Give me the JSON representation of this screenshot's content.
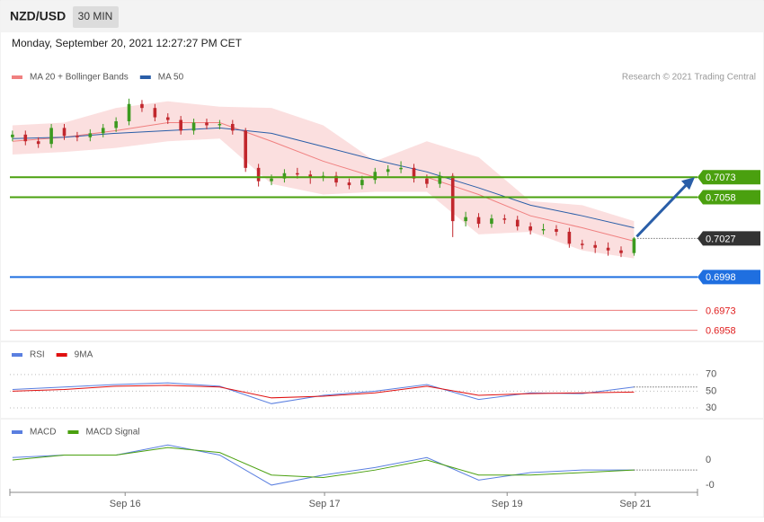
{
  "header": {
    "symbol": "NZD/USD",
    "interval": "30 MIN",
    "timestamp": "Monday, September 20, 2021 12:27:27 PM CET"
  },
  "chart_data": [
    {
      "type": "candlestick",
      "credit": "Research © 2021 Trading Central",
      "up_color": "#3c9a1f",
      "down_color": "#c1272d",
      "ohlc": [
        [
          0.7103,
          0.7108,
          0.71,
          0.7105
        ],
        [
          0.7105,
          0.7108,
          0.7097,
          0.71
        ],
        [
          0.71,
          0.7103,
          0.7095,
          0.7098
        ],
        [
          0.7098,
          0.7113,
          0.7095,
          0.711
        ],
        [
          0.711,
          0.7113,
          0.7101,
          0.7104
        ],
        [
          0.7104,
          0.7107,
          0.71,
          0.7103
        ],
        [
          0.7103,
          0.7109,
          0.71,
          0.7106
        ],
        [
          0.7106,
          0.7113,
          0.7103,
          0.711
        ],
        [
          0.711,
          0.7118,
          0.7107,
          0.7115
        ],
        [
          0.7115,
          0.7132,
          0.7112,
          0.7128
        ],
        [
          0.7128,
          0.7131,
          0.7122,
          0.7125
        ],
        [
          0.7125,
          0.7128,
          0.7115,
          0.7118
        ],
        [
          0.7118,
          0.7121,
          0.7113,
          0.7116
        ],
        [
          0.7116,
          0.7119,
          0.7105,
          0.7108
        ],
        [
          0.7108,
          0.7117,
          0.7105,
          0.7114
        ],
        [
          0.7114,
          0.7117,
          0.7109,
          0.7112
        ],
        [
          0.7112,
          0.7116,
          0.7109,
          0.7113
        ],
        [
          0.7113,
          0.7116,
          0.7105,
          0.7108
        ],
        [
          0.7108,
          0.711,
          0.7077,
          0.708
        ],
        [
          0.708,
          0.7083,
          0.7066,
          0.707
        ],
        [
          0.707,
          0.7075,
          0.7067,
          0.7072
        ],
        [
          0.7072,
          0.7079,
          0.7069,
          0.7076
        ],
        [
          0.7076,
          0.708,
          0.7072,
          0.7075
        ],
        [
          0.7075,
          0.7078,
          0.7068,
          0.7073
        ],
        [
          0.7073,
          0.7077,
          0.707,
          0.7074
        ],
        [
          0.7074,
          0.7077,
          0.7066,
          0.7069
        ],
        [
          0.7069,
          0.7072,
          0.7064,
          0.7067
        ],
        [
          0.7067,
          0.7074,
          0.7064,
          0.7071
        ],
        [
          0.7071,
          0.708,
          0.7068,
          0.7077
        ],
        [
          0.7077,
          0.7082,
          0.7074,
          0.7079
        ],
        [
          0.7079,
          0.7085,
          0.7076,
          0.708
        ],
        [
          0.708,
          0.7083,
          0.7069,
          0.7072
        ],
        [
          0.7072,
          0.7075,
          0.7065,
          0.7068
        ],
        [
          0.7068,
          0.7077,
          0.7065,
          0.7074
        ],
        [
          0.7074,
          0.7076,
          0.7028,
          0.704
        ],
        [
          0.704,
          0.7047,
          0.7036,
          0.7043
        ],
        [
          0.7043,
          0.7046,
          0.7035,
          0.7038
        ],
        [
          0.7038,
          0.7045,
          0.7035,
          0.7042
        ],
        [
          0.7042,
          0.7045,
          0.7038,
          0.7041
        ],
        [
          0.7041,
          0.7044,
          0.7033,
          0.7036
        ],
        [
          0.7036,
          0.7039,
          0.703,
          0.7033
        ],
        [
          0.7033,
          0.7038,
          0.703,
          0.7034
        ],
        [
          0.7034,
          0.7037,
          0.7029,
          0.7032
        ],
        [
          0.7032,
          0.7035,
          0.702,
          0.7023
        ],
        [
          0.7023,
          0.7026,
          0.7019,
          0.7022
        ],
        [
          0.7022,
          0.7025,
          0.7016,
          0.702
        ],
        [
          0.702,
          0.7024,
          0.7014,
          0.7018
        ],
        [
          0.7018,
          0.7021,
          0.7013,
          0.7016
        ],
        [
          0.7016,
          0.7028,
          0.7014,
          0.7027
        ]
      ],
      "xlim": [
        -0.2,
        52.9
      ],
      "xticks": [
        {
          "value": 8.7,
          "label": "Sep 16"
        },
        {
          "value": 24.1,
          "label": "Sep 17"
        },
        {
          "value": 38.2,
          "label": "Sep 19"
        },
        {
          "value": 48.1,
          "label": "Sep 21"
        }
      ],
      "ylim": [
        0.6953,
        0.7142
      ],
      "indicator_x": [
        0,
        4,
        8,
        12,
        16,
        20,
        24,
        28,
        32,
        36,
        40,
        44,
        48
      ],
      "series": [
        {
          "name": "MA 20 + Bollinger Bands",
          "color": "#f08080",
          "values": [
            0.71,
            0.7103,
            0.7108,
            0.7114,
            0.7114,
            0.71,
            0.7085,
            0.7073,
            0.7073,
            0.706,
            0.7044,
            0.7035,
            0.7025
          ],
          "upper": [
            0.7112,
            0.7114,
            0.7125,
            0.713,
            0.7126,
            0.7125,
            0.7112,
            0.7085,
            0.71,
            0.7088,
            0.7055,
            0.7052,
            0.704
          ],
          "lower": [
            0.709,
            0.7092,
            0.7095,
            0.71,
            0.7102,
            0.7068,
            0.706,
            0.7062,
            0.7062,
            0.703,
            0.7032,
            0.7018,
            0.7012
          ]
        },
        {
          "name": "MA 50",
          "color": "#2a5ea8",
          "values": [
            0.7102,
            0.7103,
            0.7106,
            0.7108,
            0.711,
            0.7106,
            0.7096,
            0.7086,
            0.7077,
            0.7065,
            0.7052,
            0.7044,
            0.7035
          ]
        }
      ],
      "levels": [
        {
          "value": 0.7073,
          "color": "#4aa00f",
          "line": "solid",
          "boxed": true
        },
        {
          "value": 0.7058,
          "color": "#4aa00f",
          "line": "solid",
          "boxed": true
        },
        {
          "value": 0.7027,
          "color": "#333333",
          "line": "dotted",
          "boxed": true
        },
        {
          "value": 0.6998,
          "color": "#1f6fe0",
          "line": "solid",
          "boxed": true
        },
        {
          "value": 0.6973,
          "color": "#e02020",
          "line": "solid",
          "boxed": false
        },
        {
          "value": 0.6958,
          "color": "#e02020",
          "line": "solid",
          "boxed": false
        }
      ]
    },
    {
      "type": "line",
      "x": [
        0,
        4,
        8,
        12,
        16,
        20,
        24,
        28,
        32,
        36,
        40,
        44,
        48
      ],
      "ylim": [
        17,
        86
      ],
      "yticks": [
        70,
        50,
        30
      ],
      "grid": true,
      "series": [
        {
          "name": "RSI",
          "color": "#5a7fe0",
          "values": [
            52,
            55,
            58,
            60,
            56,
            35,
            45,
            50,
            58,
            40,
            48,
            47,
            55
          ]
        },
        {
          "name": "9MA",
          "color": "#e01010",
          "values": [
            50,
            52,
            56,
            57,
            55,
            42,
            44,
            48,
            56,
            45,
            47,
            48,
            49
          ]
        }
      ]
    },
    {
      "type": "line",
      "x": [
        0,
        4,
        8,
        12,
        16,
        20,
        24,
        28,
        32,
        36,
        40,
        44,
        48
      ],
      "ylim": [
        -0.00129,
        0.00079
      ],
      "yticks": [
        0,
        {
          "value": -0.001,
          "label": "-0"
        }
      ],
      "grid": false,
      "series": [
        {
          "name": "MACD",
          "color": "#5a7fe0",
          "values": [
            0.0001,
            0.0002,
            0.0002,
            0.0006,
            0.0002,
            -0.001,
            -0.0006,
            -0.0003,
            0.0001,
            -0.0008,
            -0.0005,
            -0.0004,
            -0.0004
          ]
        },
        {
          "name": "MACD Signal",
          "color": "#4aa00f",
          "values": [
            0.0,
            0.0002,
            0.0002,
            0.0005,
            0.0003,
            -0.0006,
            -0.0007,
            -0.0004,
            0.0,
            -0.0006,
            -0.0006,
            -0.0005,
            -0.0004
          ]
        }
      ]
    }
  ]
}
